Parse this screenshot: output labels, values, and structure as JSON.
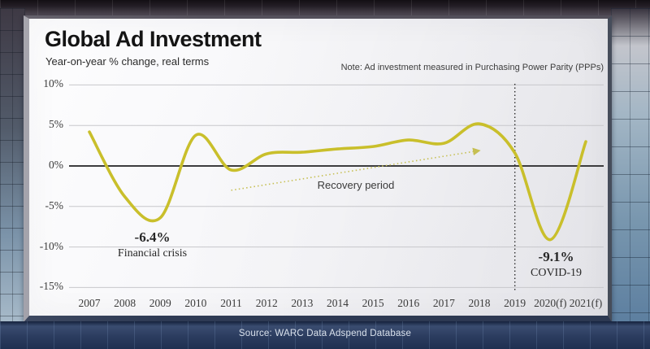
{
  "header": {
    "title": "Global Ad Investment",
    "subtitle": "Year-on-year % change, real terms",
    "note": "Note: Ad investment measured in Purchasing Power Parity (PPPs)"
  },
  "footer": {
    "source": "Source: WARC Data Adspend Database"
  },
  "chart_data": {
    "type": "line",
    "title": "Global Ad Investment",
    "subtitle": "Year-on-year % change, real terms",
    "categories": [
      "2007",
      "2008",
      "2009",
      "2010",
      "2011",
      "2012",
      "2013",
      "2014",
      "2015",
      "2016",
      "2017",
      "2018",
      "2019",
      "2020(f)",
      "2021(f)"
    ],
    "values": [
      4.2,
      -3.8,
      -6.4,
      3.8,
      -0.5,
      1.5,
      1.7,
      2.1,
      2.4,
      3.2,
      2.8,
      5.2,
      1.6,
      -9.1,
      3.0
    ],
    "ylim": [
      -15,
      10
    ],
    "ytick_labels": [
      "10%",
      "5%",
      "0%",
      "-5%",
      "-10%",
      "-15%"
    ],
    "ytick_values": [
      10,
      5,
      0,
      -5,
      -10,
      -15
    ],
    "grid": "horizontal",
    "legend": "none",
    "line_color": "#c9bf2b",
    "annotations": [
      {
        "value_text": "-6.4%",
        "caption": "Financial crisis",
        "at": "2009"
      },
      {
        "value_text": "-9.1%",
        "caption": "COVID-19",
        "at": "2020(f)"
      },
      {
        "caption": "Recovery period",
        "kind": "dotted-arrow",
        "from": "2011",
        "to": "2018"
      }
    ],
    "reference_line": {
      "style": "dotted-vertical",
      "at": "2019"
    }
  }
}
